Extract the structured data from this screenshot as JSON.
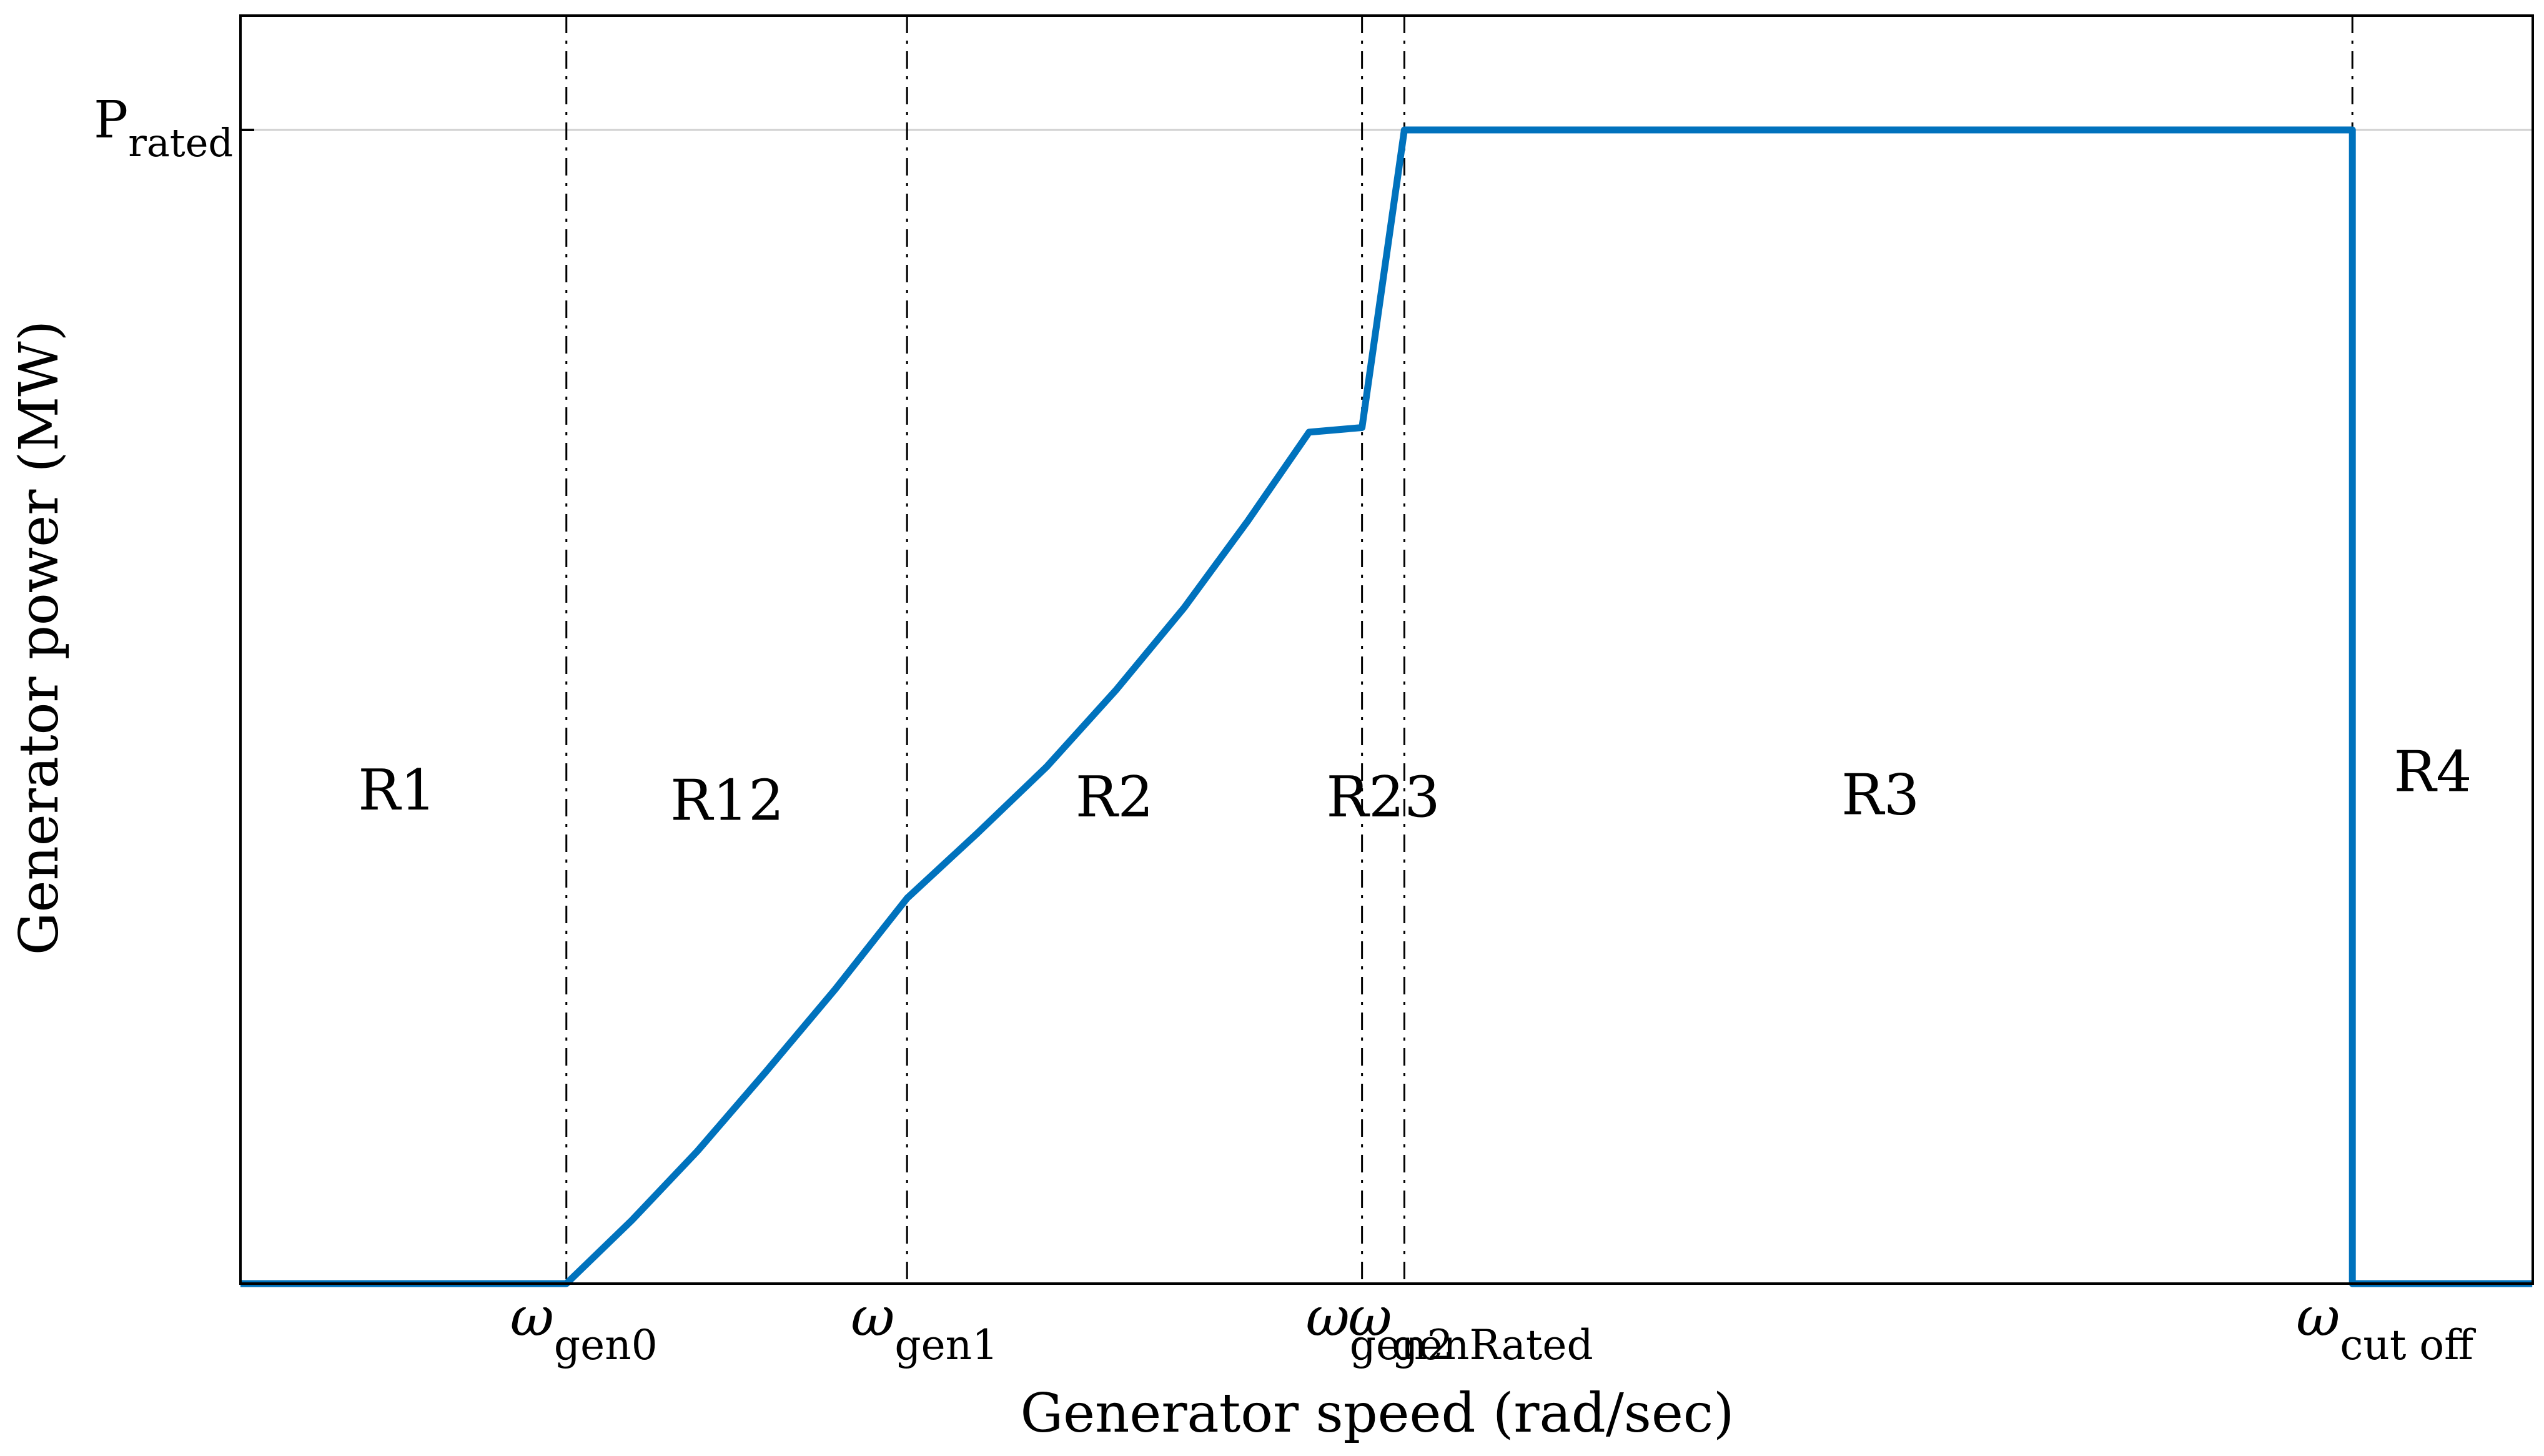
{
  "chart_data": {
    "type": "line",
    "xlabel": "Generator speed (rad/sec)",
    "ylabel": "Generator power (MW)",
    "xlim": [
      0,
      100
    ],
    "ylim": [
      0,
      100
    ],
    "grid": false,
    "x_ticks": [
      {
        "base": "ω",
        "sub": "gen0",
        "x": 15.4
      },
      {
        "base": "ω",
        "sub": "gen1",
        "x": 31.5
      },
      {
        "base": "ω",
        "sub": "gen2",
        "x": 53.0
      },
      {
        "base": "ω",
        "sub": "genRated",
        "x": 55.0
      },
      {
        "base": "ω",
        "sub": "cut off",
        "x": 99.8
      }
    ],
    "y_ticks": [
      {
        "base": "P",
        "sub": "rated",
        "y": 100
      }
    ],
    "reference_line": {
      "y": 100,
      "color": "#d0d0d0"
    },
    "regions": [
      {
        "label": "R1",
        "x": 7.4,
        "y": 41.1
      },
      {
        "label": "R12",
        "x": 23.0,
        "y": 40.2
      },
      {
        "label": "R2",
        "x": 41.3,
        "y": 40.5
      },
      {
        "label": "R23",
        "x": 54.0,
        "y": 40.5
      },
      {
        "label": "R3",
        "x": 77.5,
        "y": 40.7
      },
      {
        "label": "R4",
        "x": 103.6,
        "y": 42.7
      }
    ],
    "series": [
      {
        "color": "#0072BD",
        "points": [
          [
            0,
            0
          ],
          [
            15.4,
            0
          ],
          [
            18.5,
            5.5
          ],
          [
            21.6,
            11.5
          ],
          [
            24.8,
            18.3
          ],
          [
            28.1,
            25.5
          ],
          [
            31.5,
            33.4
          ],
          [
            34.8,
            39.0
          ],
          [
            38.1,
            44.8
          ],
          [
            41.4,
            51.5
          ],
          [
            44.6,
            58.6
          ],
          [
            47.6,
            66.1
          ],
          [
            50.5,
            73.8
          ],
          [
            53.0,
            74.2
          ],
          [
            53.0,
            74.2
          ],
          [
            55.0,
            100
          ],
          [
            99.8,
            100
          ],
          [
            99.8,
            0
          ],
          [
            100,
            0
          ],
          [
            108.3,
            0
          ]
        ]
      }
    ]
  }
}
